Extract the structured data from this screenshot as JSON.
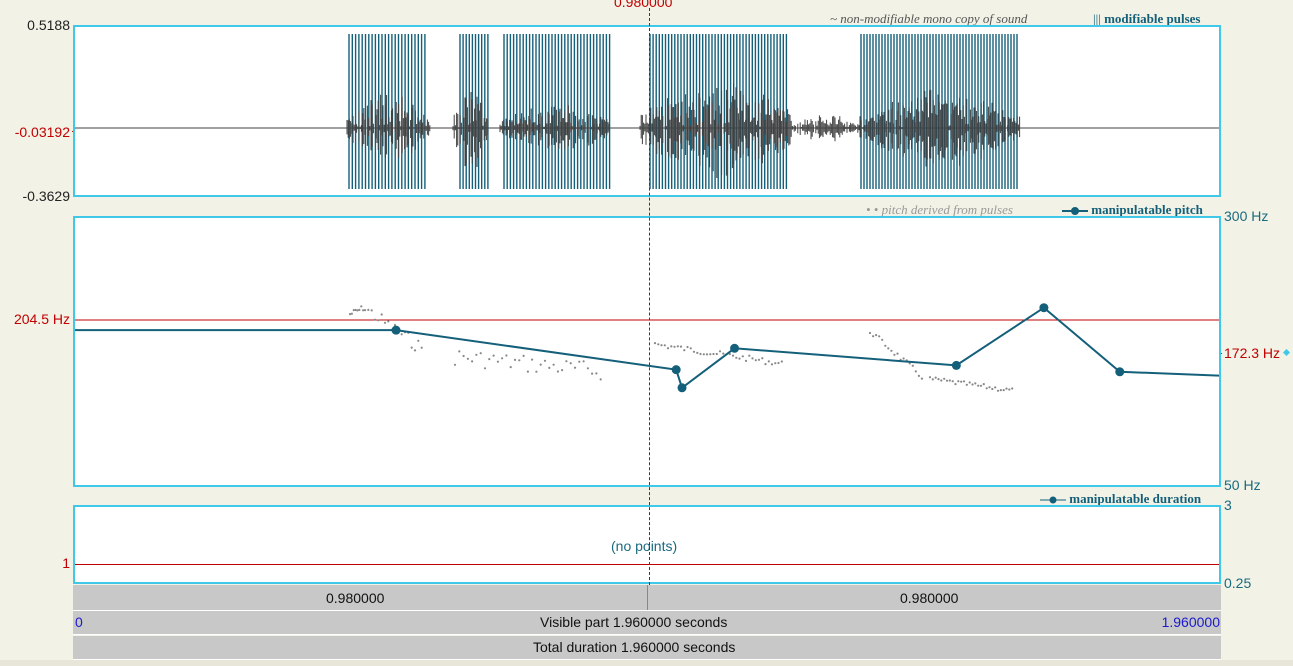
{
  "cursor": {
    "time_label": "0.980000"
  },
  "sound_panel": {
    "y_top": "0.5188",
    "y_mid": "-0.03192",
    "y_bottom": "-0.3629",
    "legend_sound": "~ non-modifiable mono copy of sound",
    "legend_pulses_glyph": "|||",
    "legend_pulses": "modifiable pulses"
  },
  "pitch_panel": {
    "legend_derived_glyph": "• •",
    "legend_derived": "pitch derived from pulses",
    "legend_manip": "manipulatable pitch",
    "y_left_value": "204.5 Hz",
    "y_right_top": "300 Hz",
    "y_right_value": "172.3 Hz",
    "y_right_bottom": "50 Hz"
  },
  "duration_panel": {
    "legend": "manipulatable duration",
    "y_right_top": "3",
    "y_right_bottom": "0.25",
    "y_left_value": "1",
    "empty_text": "(no points)"
  },
  "time_bars": {
    "left_segment": "0.980000",
    "right_segment": "0.980000",
    "visible_start": "0",
    "visible_label": "Visible part 1.960000 seconds",
    "visible_end": "1.960000",
    "total_label": "Total duration 1.960000 seconds"
  },
  "colors": {
    "panel_border": "#40c8e8",
    "pitch_line": "#14607a",
    "cursor": "#c00000",
    "waveform": "#404040"
  },
  "chart_data": {
    "type": "line",
    "series": [
      {
        "name": "manipulatable pitch",
        "points": [
          [
            0.55,
            195
          ],
          [
            1.03,
            158
          ],
          [
            1.04,
            141
          ],
          [
            1.13,
            178
          ],
          [
            1.51,
            162
          ],
          [
            1.66,
            216
          ],
          [
            1.79,
            156
          ],
          [
            1.98,
            152
          ]
        ]
      }
    ],
    "ylim": [
      50,
      300
    ]
  }
}
